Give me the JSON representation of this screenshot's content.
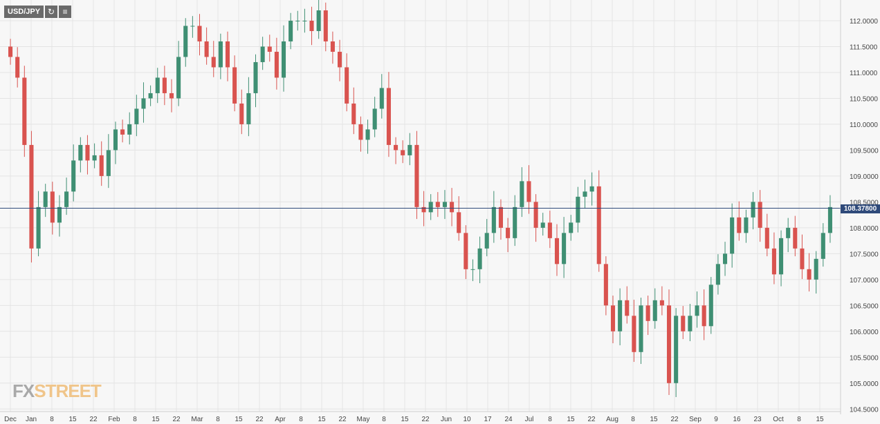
{
  "toolbar": {
    "symbol": "USD/JPY",
    "refresh_icon": "refresh-icon",
    "settings_icon": "indicator-icon"
  },
  "logo": {
    "fx": "FX",
    "street": "STREET"
  },
  "last_price": {
    "label": "108.37800",
    "value": 108.378
  },
  "colors": {
    "up": "#3f8f73",
    "down": "#d9534f",
    "price_line": "#2f4a7a",
    "grid": "#e4e4e4"
  },
  "chart_data": {
    "type": "candlestick",
    "title": "USD/JPY",
    "grid": true,
    "ylim": [
      104.45,
      112.4
    ],
    "y_ticks": [
      "112.0000",
      "111.5000",
      "111.0000",
      "110.5000",
      "110.0000",
      "109.5000",
      "109.0000",
      "108.5000",
      "108.0000",
      "107.5000",
      "107.0000",
      "106.5000",
      "106.0000",
      "105.5000",
      "105.0000",
      "104.5000"
    ],
    "x_ticks": [
      "Dec",
      "Jan",
      "8",
      "15",
      "22",
      "Feb",
      "8",
      "15",
      "22",
      "Mar",
      "8",
      "15",
      "22",
      "Apr",
      "8",
      "15",
      "22",
      "May",
      "8",
      "15",
      "22",
      "Jun",
      "10",
      "17",
      "24",
      "Jul",
      "8",
      "15",
      "22",
      "Aug",
      "8",
      "15",
      "22",
      "Sep",
      "9",
      "16",
      "23",
      "Oct",
      "8",
      "15"
    ],
    "candles_close": [
      111.3,
      110.9,
      109.6,
      107.6,
      108.4,
      108.7,
      108.1,
      108.4,
      108.7,
      109.3,
      109.6,
      109.3,
      109.4,
      109.0,
      109.5,
      109.9,
      109.8,
      110.0,
      110.3,
      110.5,
      110.6,
      110.9,
      110.6,
      110.5,
      111.3,
      111.9,
      111.9,
      111.6,
      111.3,
      111.1,
      111.6,
      111.1,
      110.4,
      110.0,
      110.6,
      111.2,
      111.5,
      111.4,
      110.9,
      111.6,
      112.0,
      112.0,
      112.0,
      111.8,
      112.2,
      111.6,
      111.4,
      111.1,
      110.4,
      110.0,
      109.7,
      109.9,
      110.3,
      110.7,
      109.6,
      109.5,
      109.4,
      109.6,
      108.4,
      108.3,
      108.5,
      108.4,
      108.5,
      108.3,
      107.9,
      107.2,
      107.2,
      107.6,
      107.9,
      108.4,
      108.0,
      107.8,
      108.4,
      108.9,
      108.5,
      108.0,
      108.1,
      107.8,
      107.3,
      107.9,
      108.1,
      108.6,
      108.7,
      108.8,
      107.3,
      106.5,
      106.0,
      106.6,
      106.3,
      105.6,
      106.5,
      106.2,
      106.6,
      106.5,
      105.0,
      106.3,
      106.0,
      106.3,
      106.5,
      106.1,
      106.9,
      107.3,
      107.5,
      108.2,
      107.9,
      108.2,
      108.5,
      108.0,
      107.6,
      107.1,
      107.8,
      108.0,
      107.6,
      107.2,
      107.0,
      107.4,
      107.9,
      108.4
    ]
  }
}
